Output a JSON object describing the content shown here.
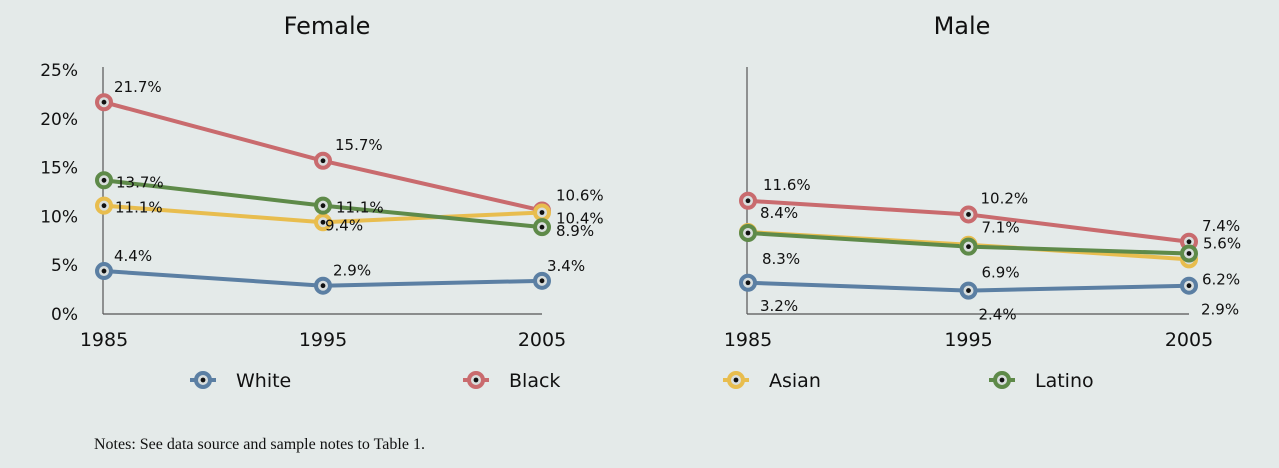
{
  "chart_data": [
    {
      "type": "line",
      "title": "Female",
      "x": [
        "1985",
        "1995",
        "2005"
      ],
      "ylim": [
        0,
        25
      ],
      "yticks": [
        "0%",
        "5%",
        "10%",
        "15%",
        "20%",
        "25%"
      ],
      "y_axis_shown": true,
      "series": [
        {
          "name": "White",
          "values": [
            4.4,
            2.9,
            3.4
          ],
          "labels": [
            "4.4%",
            "2.9%",
            "3.4%"
          ]
        },
        {
          "name": "Black",
          "values": [
            21.7,
            15.7,
            10.6
          ],
          "labels": [
            "21.7%",
            "15.7%",
            "10.6%"
          ]
        },
        {
          "name": "Asian",
          "values": [
            11.1,
            9.4,
            10.4
          ],
          "labels": [
            "11.1%",
            "9.4%",
            "10.4%"
          ]
        },
        {
          "name": "Latino",
          "values": [
            13.7,
            11.1,
            8.9
          ],
          "labels": [
            "13.7%",
            "11.1%",
            "8.9%"
          ]
        }
      ]
    },
    {
      "type": "line",
      "title": "Male",
      "x": [
        "1985",
        "1995",
        "2005"
      ],
      "ylim": [
        0,
        25
      ],
      "y_axis_shown": false,
      "series": [
        {
          "name": "White",
          "values": [
            3.2,
            2.4,
            2.9
          ],
          "labels": [
            "3.2%",
            "2.4%",
            "2.9%"
          ]
        },
        {
          "name": "Black",
          "values": [
            11.6,
            10.2,
            7.4
          ],
          "labels": [
            "11.6%",
            "10.2%",
            "7.4%"
          ]
        },
        {
          "name": "Asian",
          "values": [
            8.4,
            7.1,
            5.6
          ],
          "labels": [
            "8.4%",
            "7.1%",
            "5.6%"
          ]
        },
        {
          "name": "Latino",
          "values": [
            8.3,
            6.9,
            6.2
          ],
          "labels": [
            "8.3%",
            "6.9%",
            "6.2%"
          ]
        }
      ]
    }
  ],
  "legend": {
    "placement": "bottom",
    "items": [
      {
        "name": "White",
        "color": "#5b7fa3"
      },
      {
        "name": "Black",
        "color": "#c96b6e"
      },
      {
        "name": "Asian",
        "color": "#e8bd4e"
      },
      {
        "name": "Latino",
        "color": "#5e8a49"
      }
    ]
  },
  "note": "Notes: See data source and sample notes to Table 1."
}
